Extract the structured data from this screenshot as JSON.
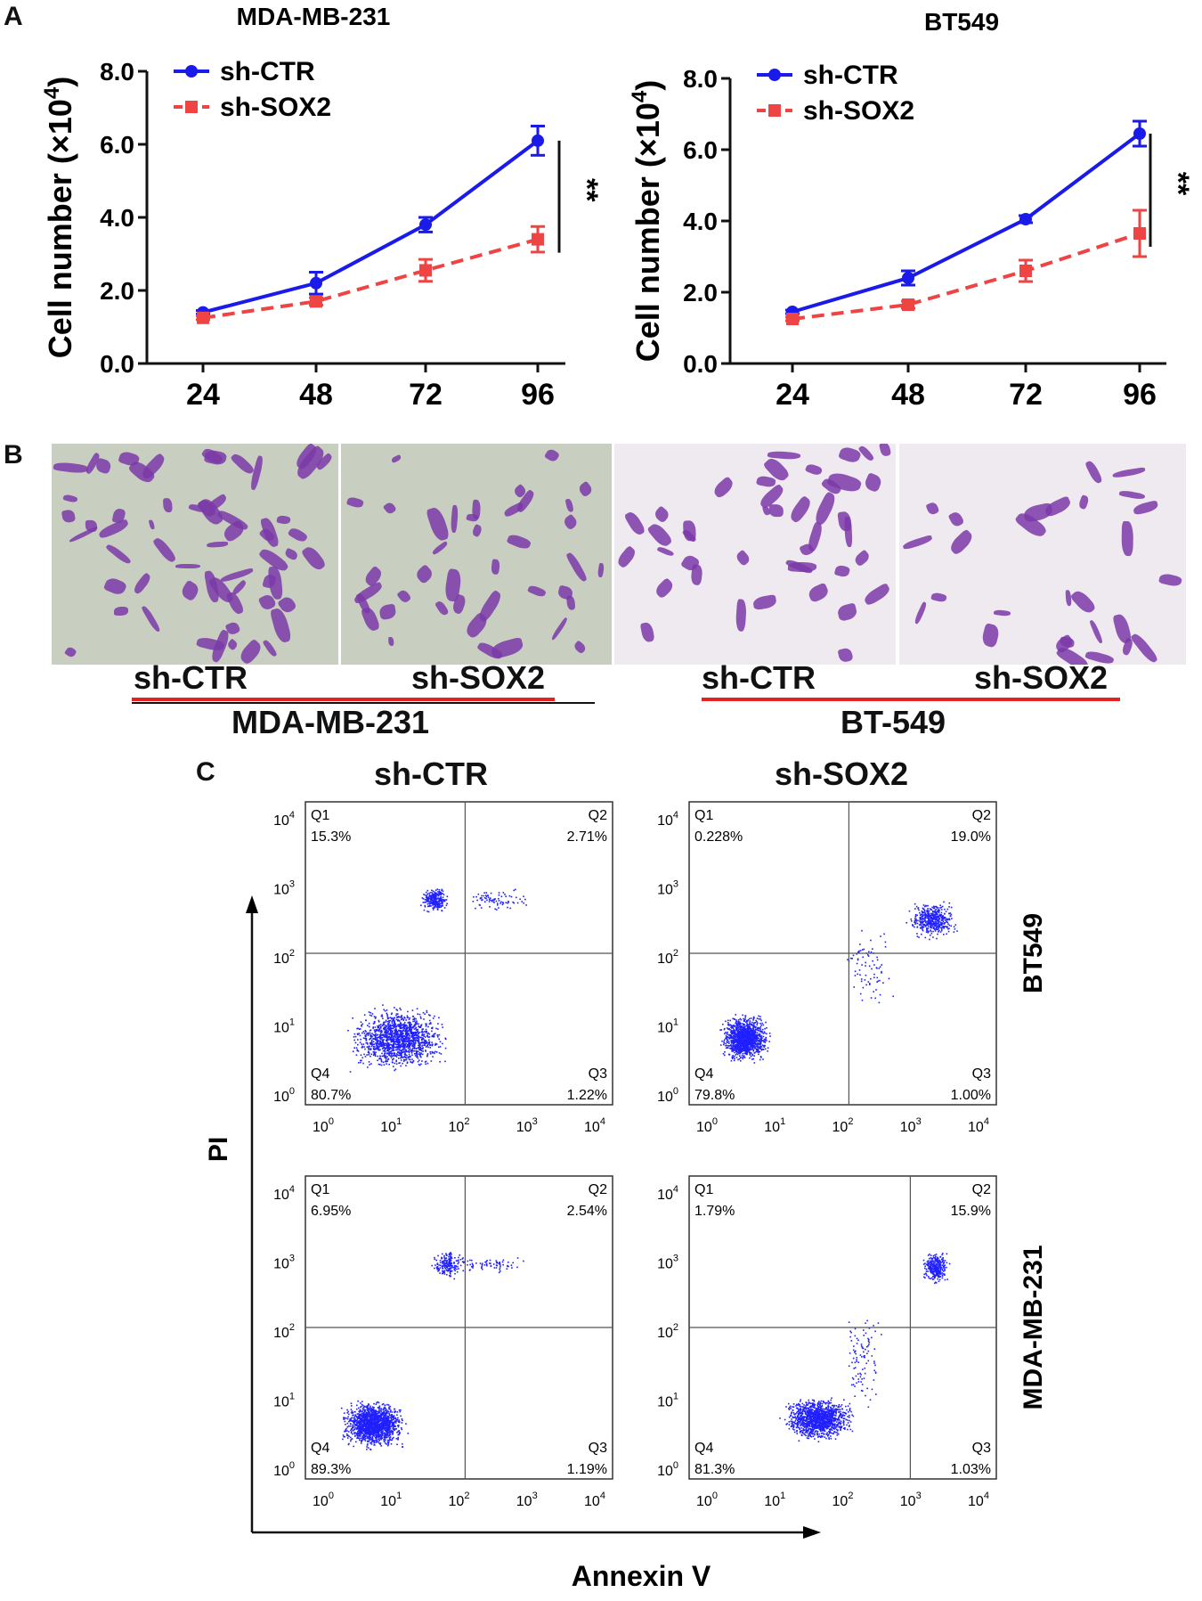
{
  "panels": {
    "a": "A",
    "b": "B",
    "c": "C"
  },
  "chart_data": [
    {
      "type": "line",
      "title": "MDA-MB-231",
      "xlabel": "",
      "ylabel": "Cell number (×10 4)",
      "ylabel_main": "Cell number (×10",
      "ylabel_sup": "4",
      "ylabel_close": ")",
      "categories": [
        "24",
        "48",
        "72",
        "96"
      ],
      "yticks": [
        "0.0",
        "2.0",
        "4.0",
        "6.0",
        "8.0"
      ],
      "ylim": [
        0,
        8
      ],
      "series": [
        {
          "name": "sh-CTR",
          "color": "#1a1aeb",
          "values": [
            1.4,
            2.2,
            3.8,
            6.1
          ],
          "errors": [
            0.05,
            0.3,
            0.2,
            0.4
          ]
        },
        {
          "name": "sh-SOX2",
          "color": "#ee4444",
          "values": [
            1.25,
            1.7,
            2.55,
            3.4
          ],
          "errors": [
            0.05,
            0.1,
            0.3,
            0.35
          ]
        }
      ],
      "significance": "**"
    },
    {
      "type": "line",
      "title": "BT549",
      "xlabel": "",
      "ylabel": "Cell number (×10 4)",
      "ylabel_main": "Cell number (×10",
      "ylabel_sup": "4",
      "ylabel_close": ")",
      "categories": [
        "24",
        "48",
        "72",
        "96"
      ],
      "yticks": [
        "0.0",
        "2.0",
        "4.0",
        "6.0",
        "8.0"
      ],
      "ylim": [
        0,
        8
      ],
      "series": [
        {
          "name": "sh-CTR",
          "color": "#1a1aeb",
          "values": [
            1.45,
            2.4,
            4.05,
            6.45
          ],
          "errors": [
            0.05,
            0.2,
            0.1,
            0.35
          ]
        },
        {
          "name": "sh-SOX2",
          "color": "#ee4444",
          "values": [
            1.25,
            1.65,
            2.6,
            3.65
          ],
          "errors": [
            0.05,
            0.1,
            0.3,
            0.65
          ]
        }
      ],
      "significance": "**"
    }
  ],
  "panel_b": {
    "labels": [
      "sh-CTR",
      "sh-SOX2",
      "sh-CTR",
      "sh-SOX2"
    ],
    "groups": [
      "MDA-MB-231",
      "BT-549"
    ]
  },
  "panel_c": {
    "column_titles": [
      "sh-CTR",
      "sh-SOX2"
    ],
    "row_labels": [
      "BT549",
      "MDA-MB-231"
    ],
    "y_axis_label": "PI",
    "x_axis_label": "Annexin V",
    "axis_ticks": [
      "10",
      "10",
      "10",
      "10",
      "10"
    ],
    "tick_exponents": [
      "0",
      "1",
      "2",
      "3",
      "4"
    ],
    "plots": [
      {
        "q1": "Q1",
        "q1_value": "15.3%",
        "q2": "Q2",
        "q2_value": "2.71%",
        "q3": "Q3",
        "q3_value": "1.22%",
        "q4": "Q4",
        "q4_value": "80.7%"
      },
      {
        "q1": "Q1",
        "q1_value": "0.228%",
        "q2": "Q2",
        "q2_value": "19.0%",
        "q3": "Q3",
        "q3_value": "1.00%",
        "q4": "Q4",
        "q4_value": "79.8%"
      },
      {
        "q1": "Q1",
        "q1_value": "6.95%",
        "q2": "Q2",
        "q2_value": "2.54%",
        "q3": "Q3",
        "q3_value": "1.19%",
        "q4": "Q4",
        "q4_value": "89.3%"
      },
      {
        "q1": "Q1",
        "q1_value": "1.79%",
        "q2": "Q2",
        "q2_value": "15.9%",
        "q3": "Q3",
        "q3_value": "1.03%",
        "q4": "Q4",
        "q4_value": "81.3%"
      }
    ]
  },
  "colors": {
    "blue": "#1a1aeb",
    "red": "#ee4444",
    "dot": "#2020ff",
    "stain": "#7b3aa8"
  }
}
